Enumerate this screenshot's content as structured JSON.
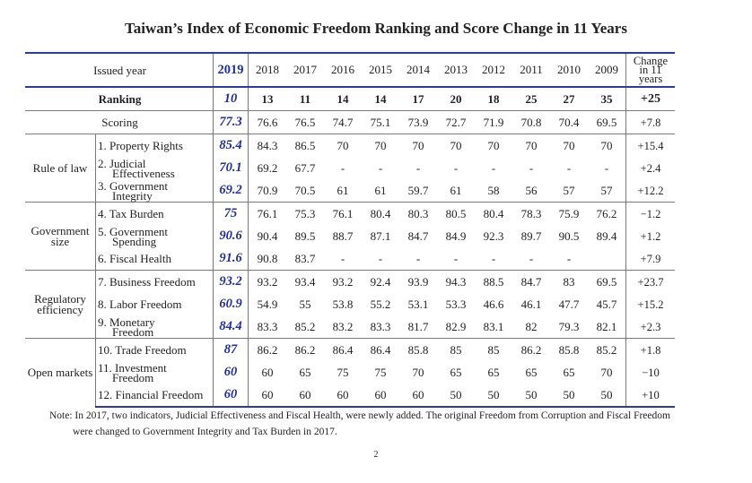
{
  "title": "Taiwan’s Index of Economic Freedom Ranking and Score Change in 11 Years",
  "header": {
    "issued_label": "Issued year",
    "years": [
      "2019",
      "2018",
      "2017",
      "2016",
      "2015",
      "2014",
      "2013",
      "2012",
      "2011",
      "2010",
      "2009"
    ],
    "change_label_1": "Change",
    "change_label_2": "in 11",
    "change_label_3": "years"
  },
  "ranking": {
    "label": "Ranking",
    "values": [
      "10",
      "13",
      "11",
      "14",
      "14",
      "17",
      "20",
      "18",
      "25",
      "27",
      "35"
    ],
    "change": "+25"
  },
  "scoring": {
    "label": "Scoring",
    "values": [
      "77.3",
      "76.6",
      "76.5",
      "74.7",
      "75.1",
      "73.9",
      "72.7",
      "71.9",
      "70.8",
      "70.4",
      "69.5"
    ],
    "change": "+7.8"
  },
  "categories": [
    {
      "name_1": "Rule of law",
      "name_2": "",
      "indicators": [
        {
          "name_1": "1. Property Rights",
          "name_2": "",
          "values": [
            "85.4",
            "84.3",
            "86.5",
            "70",
            "70",
            "70",
            "70",
            "70",
            "70",
            "70",
            "70"
          ],
          "change": "+15.4"
        },
        {
          "name_1": "2. Judicial",
          "name_2": "Effectiveness",
          "values": [
            "70.1",
            "69.2",
            "67.7",
            "-",
            "-",
            "-",
            "-",
            "-",
            "-",
            "-",
            "-"
          ],
          "change": "+2.4"
        },
        {
          "name_1": "3. Government",
          "name_2": "Integrity",
          "values": [
            "69.2",
            "70.9",
            "70.5",
            "61",
            "61",
            "59.7",
            "61",
            "58",
            "56",
            "57",
            "57"
          ],
          "change": "+12.2"
        }
      ]
    },
    {
      "name_1": "Government",
      "name_2": "size",
      "indicators": [
        {
          "name_1": "4. Tax Burden",
          "name_2": "",
          "values": [
            "75",
            "76.1",
            "75.3",
            "76.1",
            "80.4",
            "80.3",
            "80.5",
            "80.4",
            "78.3",
            "75.9",
            "76.2"
          ],
          "change": "−1.2"
        },
        {
          "name_1": "5. Government",
          "name_2": "Spending",
          "values": [
            "90.6",
            "90.4",
            "89.5",
            "88.7",
            "87.1",
            "84.7",
            "84.9",
            "92.3",
            "89.7",
            "90.5",
            "89.4"
          ],
          "change": "+1.2"
        },
        {
          "name_1": "6. Fiscal Health",
          "name_2": "",
          "values": [
            "91.6",
            "90.8",
            "83.7",
            "-",
            "-",
            "-",
            "-",
            "-",
            "-",
            "-",
            ""
          ],
          "change": "+7.9"
        }
      ]
    },
    {
      "name_1": "Regulatory",
      "name_2": "efficiency",
      "indicators": [
        {
          "name_1": "7. Business Freedom",
          "name_2": "",
          "values": [
            "93.2",
            "93.2",
            "93.4",
            "93.2",
            "92.4",
            "93.9",
            "94.3",
            "88.5",
            "84.7",
            "83",
            "69.5"
          ],
          "change": "+23.7"
        },
        {
          "name_1": "8. Labor Freedom",
          "name_2": "",
          "values": [
            "60.9",
            "54.9",
            "55",
            "53.8",
            "55.2",
            "53.1",
            "53.3",
            "46.6",
            "46.1",
            "47.7",
            "45.7"
          ],
          "change": "+15.2"
        },
        {
          "name_1": "9. Monetary",
          "name_2": "Freedom",
          "values": [
            "84.4",
            "83.3",
            "85.2",
            "83.2",
            "83.3",
            "81.7",
            "82.9",
            "83.1",
            "82",
            "79.3",
            "82.1"
          ],
          "change": "+2.3"
        }
      ]
    },
    {
      "name_1": "Open markets",
      "name_2": "",
      "indicators": [
        {
          "name_1": "10. Trade Freedom",
          "name_2": "",
          "values": [
            "87",
            "86.2",
            "86.2",
            "86.4",
            "86.4",
            "85.8",
            "85",
            "85",
            "86.2",
            "85.8",
            "85.2"
          ],
          "change": "+1.8"
        },
        {
          "name_1": "11. Investment",
          "name_2": "Freedom",
          "values": [
            "60",
            "60",
            "65",
            "75",
            "75",
            "70",
            "65",
            "65",
            "65",
            "65",
            "70"
          ],
          "change": "−10"
        },
        {
          "name_1": "12. Financial Freedom",
          "name_2": "",
          "values": [
            "60",
            "60",
            "60",
            "60",
            "60",
            "60",
            "50",
            "50",
            "50",
            "50",
            "50"
          ],
          "change": "+10"
        }
      ]
    }
  ],
  "note_line1": "Note: In 2017, two indicators, Judicial Effectiveness and Fiscal Health, were newly added. The original Freedom from Corruption and Fiscal Freedom",
  "note_line2": "were changed to Government Integrity and Tax Burden in 2017.",
  "page_number": "2",
  "colors": {
    "accent_blue": "#1f2ea0",
    "rule_blue": "#2a3aa8"
  }
}
